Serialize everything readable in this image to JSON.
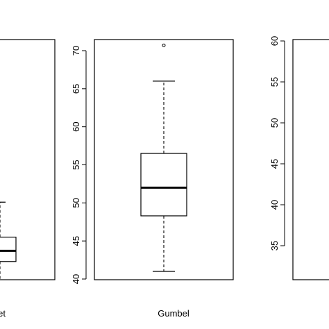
{
  "chart_data": [
    {
      "type": "box",
      "category": "net",
      "ylim": [
        40,
        72
      ],
      "ticks": [],
      "box": {
        "q1": 42.3,
        "median": 43.7,
        "q3": 45.5,
        "whisker_high": 50.1,
        "whisker_low": 40.0
      },
      "outliers": []
    },
    {
      "type": "box",
      "category": "Gumbel",
      "ylim": [
        40,
        72
      ],
      "ticks": [
        40,
        45,
        50,
        55,
        60,
        65,
        70
      ],
      "box": {
        "q1": 48.3,
        "median": 52.0,
        "q3": 56.5,
        "whisker_low": 41.0,
        "whisker_high": 66.0
      },
      "outliers": [
        70.7
      ]
    },
    {
      "type": "box",
      "category": "",
      "ylim": [
        31.5,
        61
      ],
      "ticks": [
        35,
        40,
        45,
        50,
        55,
        60
      ],
      "box": null,
      "outliers": []
    }
  ]
}
